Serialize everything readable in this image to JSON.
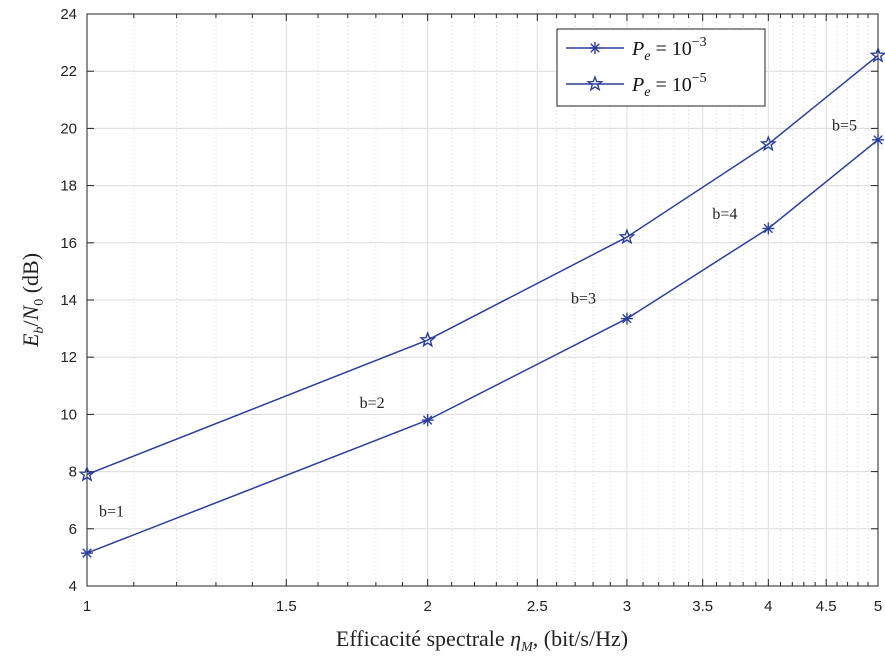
{
  "chart_data": {
    "type": "line",
    "xscale": "log",
    "xlim": [
      1,
      5
    ],
    "ylim": [
      4,
      24
    ],
    "xticks": [
      1,
      1.5,
      2,
      2.5,
      3,
      3.5,
      4,
      4.5,
      5
    ],
    "xtick_labels": [
      "1",
      "1.5",
      "2",
      "2.5",
      "3",
      "3.5",
      "4",
      "4.5",
      "5"
    ],
    "yticks": [
      4,
      6,
      8,
      10,
      12,
      14,
      16,
      18,
      20,
      22,
      24
    ],
    "ytick_labels": [
      "4",
      "6",
      "8",
      "10",
      "12",
      "14",
      "16",
      "18",
      "20",
      "22",
      "24"
    ],
    "xlabel": "Efficacité spectrale ηM, (bit/s/Hz)",
    "ylabel": "Eb/N0 (dB)",
    "grid": true,
    "legend_position": "top-right",
    "x": [
      1,
      2,
      3,
      4,
      5
    ],
    "series": [
      {
        "name": "Pe = 10^-3",
        "marker": "asterisk",
        "values": [
          5.15,
          9.8,
          13.35,
          16.5,
          19.6
        ]
      },
      {
        "name": "Pe = 10^-5",
        "marker": "star",
        "values": [
          7.9,
          12.6,
          16.2,
          19.45,
          22.55
        ]
      }
    ],
    "annotations": [
      {
        "text": "b=1",
        "x": 1,
        "y": 6.6
      },
      {
        "text": "b=2",
        "x": 2,
        "y": 10.4
      },
      {
        "text": "b=3",
        "x": 3,
        "y": 14.05
      },
      {
        "text": "b=4",
        "x": 4,
        "y": 17.0
      },
      {
        "text": "b=5",
        "x": 5,
        "y": 20.1
      }
    ],
    "colors": {
      "line": "#2b3f9a",
      "grid": "#dcdcdc"
    }
  }
}
